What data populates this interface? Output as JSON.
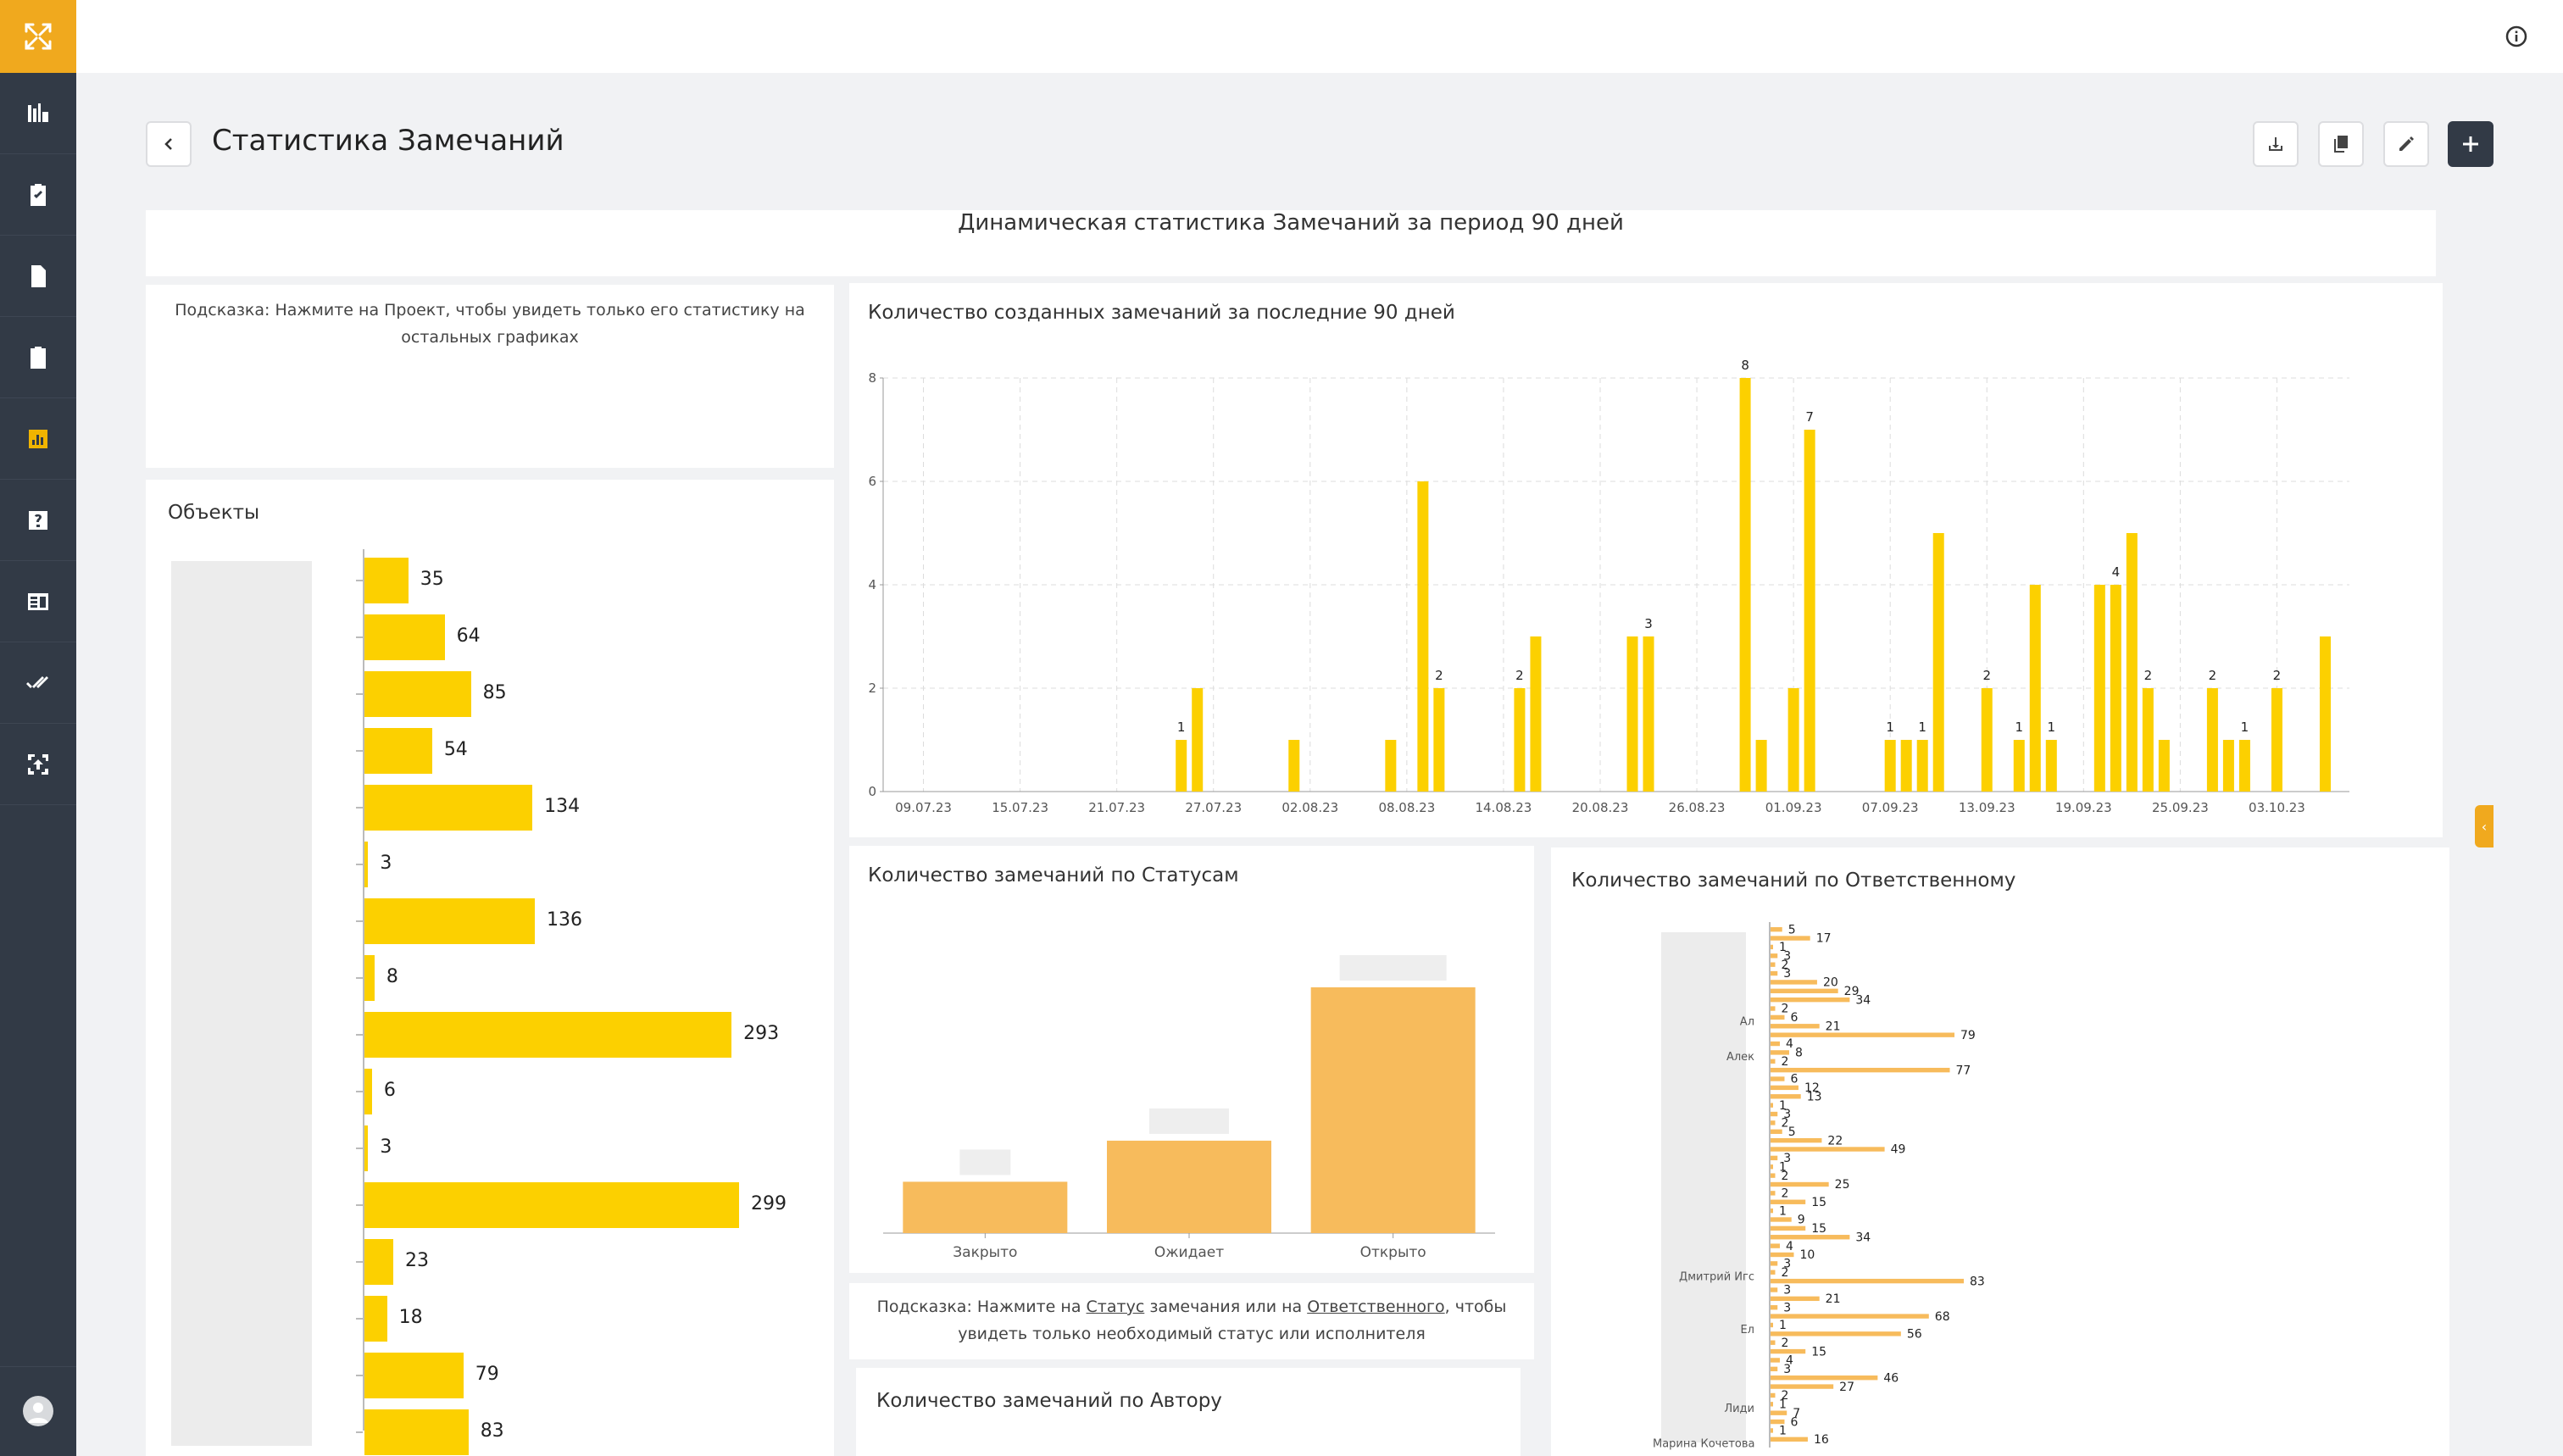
{
  "app": {
    "nav": [
      {
        "name": "nav-objects",
        "icon": "objects-icon"
      },
      {
        "name": "nav-tasks",
        "icon": "clipboard-check-icon"
      },
      {
        "name": "nav-documents",
        "icon": "document-icon"
      },
      {
        "name": "nav-remarks",
        "icon": "clipboard-info-icon"
      },
      {
        "name": "nav-statistics",
        "icon": "bar-chart-icon"
      },
      {
        "name": "nav-help",
        "icon": "help-icon"
      },
      {
        "name": "nav-reports",
        "icon": "report-icon"
      },
      {
        "name": "nav-checks",
        "icon": "double-check-icon"
      },
      {
        "name": "nav-sync",
        "icon": "sync-icon"
      }
    ],
    "accent": "#f0a91e"
  },
  "header": {
    "title": "Статистика Замечаний"
  },
  "dashboard": {
    "title": "Динамическая статистика Замечаний за период 90 дней",
    "hint_project": "Подсказка: Нажмите на Проект, чтобы увидеть только его статистику на остальных графиках",
    "hint_status": {
      "prefix": "Подсказка: Нажмите на ",
      "link1": "Статус",
      "mid": " замечания или на ",
      "link2": "Ответственного",
      "suffix": ", чтобы увидеть только необходимый статус или исполнителя"
    }
  },
  "chart_data": [
    {
      "id": "objects",
      "type": "bar",
      "orientation": "horizontal",
      "title": "Объекты",
      "values": [
        35,
        64,
        85,
        54,
        134,
        3,
        136,
        8,
        293,
        6,
        3,
        299,
        23,
        18,
        79,
        83
      ],
      "color": "#fcd000"
    },
    {
      "id": "created",
      "type": "bar",
      "title": "Количество созданных замечаний за последние 90 дней",
      "ylim": [
        0,
        8
      ],
      "yticks": [
        0,
        2,
        4,
        6,
        8
      ],
      "xticks": [
        "09.07.23",
        "15.07.23",
        "21.07.23",
        "27.07.23",
        "02.08.23",
        "08.08.23",
        "14.08.23",
        "20.08.23",
        "26.08.23",
        "01.09.23",
        "07.09.23",
        "13.09.23",
        "19.09.23",
        "25.09.23",
        "03.10.23"
      ],
      "x_start": "2023-07-07",
      "x_end": "2023-10-05",
      "points": [
        {
          "d": 18,
          "v": 1,
          "label": "1"
        },
        {
          "d": 19,
          "v": 2
        },
        {
          "d": 25,
          "v": 1
        },
        {
          "d": 31,
          "v": 1
        },
        {
          "d": 33,
          "v": 6
        },
        {
          "d": 34,
          "v": 2,
          "label": "2"
        },
        {
          "d": 39,
          "v": 2,
          "label": "2"
        },
        {
          "d": 40,
          "v": 3
        },
        {
          "d": 46,
          "v": 3
        },
        {
          "d": 47,
          "v": 3,
          "label": "3"
        },
        {
          "d": 53,
          "v": 8,
          "label": "8"
        },
        {
          "d": 54,
          "v": 1
        },
        {
          "d": 56,
          "v": 2
        },
        {
          "d": 57,
          "v": 7,
          "label": "7"
        },
        {
          "d": 62,
          "v": 1,
          "label": "1"
        },
        {
          "d": 63,
          "v": 1
        },
        {
          "d": 64,
          "v": 1,
          "label": "1"
        },
        {
          "d": 65,
          "v": 5
        },
        {
          "d": 68,
          "v": 2,
          "label": "2"
        },
        {
          "d": 70,
          "v": 1,
          "label": "1"
        },
        {
          "d": 71,
          "v": 4
        },
        {
          "d": 72,
          "v": 1,
          "label": "1"
        },
        {
          "d": 75,
          "v": 4
        },
        {
          "d": 76,
          "v": 4,
          "label": "4"
        },
        {
          "d": 77,
          "v": 5
        },
        {
          "d": 78,
          "v": 2,
          "label": "2"
        },
        {
          "d": 79,
          "v": 1
        },
        {
          "d": 82,
          "v": 2,
          "label": "2"
        },
        {
          "d": 83,
          "v": 1
        },
        {
          "d": 84,
          "v": 1,
          "label": "1"
        },
        {
          "d": 86,
          "v": 2,
          "label": "2"
        },
        {
          "d": 89,
          "v": 3
        }
      ],
      "color": "#fcd000"
    },
    {
      "id": "statuses",
      "type": "bar",
      "title": "Количество замечаний по Статусам",
      "categories": [
        "Закрыто",
        "Ожидает",
        "Открыто"
      ],
      "values": [
        70,
        126,
        335
      ],
      "color": "#f7bb5c"
    },
    {
      "id": "responsible",
      "type": "bar",
      "orientation": "horizontal",
      "title": "Количество замечаний по Ответственному",
      "visible_labels": [
        "Ал",
        "Алек",
        "Дмитрий Игс",
        "Ел",
        "Лиди",
        "Марина Кочетова"
      ],
      "values": [
        5,
        17,
        1,
        3,
        2,
        3,
        20,
        29,
        34,
        2,
        6,
        21,
        79,
        4,
        8,
        2,
        77,
        6,
        12,
        13,
        1,
        3,
        2,
        5,
        22,
        49,
        3,
        1,
        2,
        25,
        2,
        15,
        1,
        9,
        15,
        34,
        4,
        10,
        3,
        2,
        83,
        3,
        21,
        3,
        68,
        1,
        56,
        2,
        15,
        4,
        3,
        46,
        27,
        2,
        1,
        7,
        6,
        1,
        16
      ],
      "color": "#f7bb5c"
    },
    {
      "id": "authors",
      "type": "bar",
      "title": "Количество замечаний по Автору",
      "values": []
    }
  ]
}
